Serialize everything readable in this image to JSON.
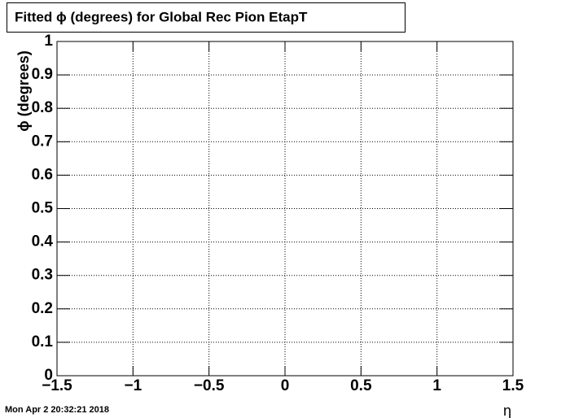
{
  "chart_data": {
    "type": "frame",
    "title": "Fitted ϕ (degrees) for Global Rec Pion EtapT",
    "x_label": "η",
    "y_label": "ϕ (degrees)",
    "annotation": "Mon Apr  2 20:32:21 2018",
    "xlim": [
      -1.5,
      1.5
    ],
    "xticks": [
      {
        "value": -1.5,
        "label": "−1.5"
      },
      {
        "value": -1,
        "label": "−1"
      },
      {
        "value": -0.5,
        "label": "−0.5"
      },
      0,
      0.5,
      1,
      1.5
    ],
    "ylim": [
      0,
      1
    ],
    "yticks": [
      0,
      0.1,
      0.2,
      0.3,
      0.4,
      0.5,
      0.6,
      0.7,
      0.8,
      0.9,
      1
    ],
    "grid": true
  }
}
